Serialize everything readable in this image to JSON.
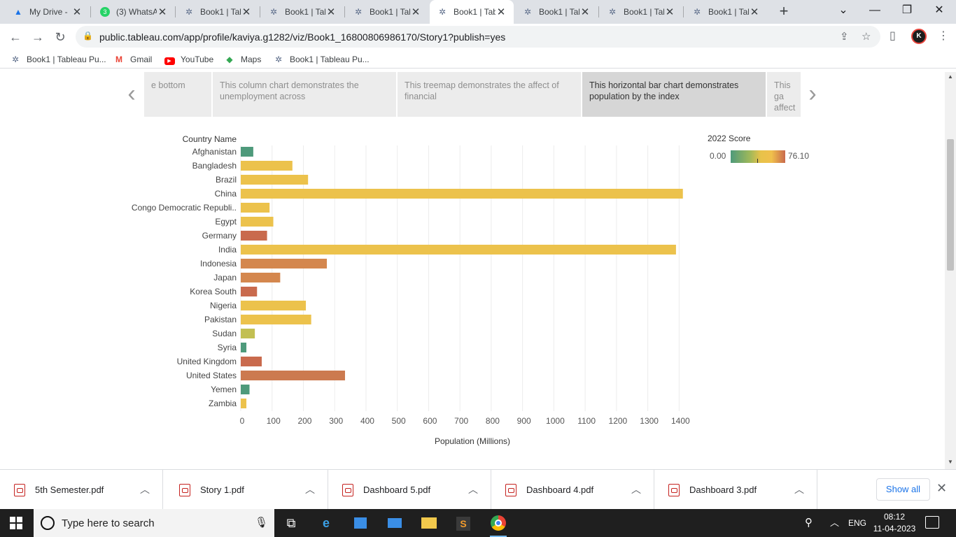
{
  "browser": {
    "tabs": [
      {
        "title": "My Drive -",
        "icon": "drive-icon",
        "color": "#1a73e8"
      },
      {
        "title": "(3) WhatsA",
        "icon": "whatsapp-icon",
        "color": "#25d366"
      },
      {
        "title": "Book1 | Tab",
        "icon": "tableau-icon"
      },
      {
        "title": "Book1 | Tab",
        "icon": "tableau-icon"
      },
      {
        "title": "Book1 | Tab",
        "icon": "tableau-icon"
      },
      {
        "title": "Book1 | Tab",
        "icon": "tableau-icon",
        "active": true
      },
      {
        "title": "Book1 | Tab",
        "icon": "tableau-icon"
      },
      {
        "title": "Book1 | Tab",
        "icon": "tableau-icon"
      },
      {
        "title": "Book1 | Tab",
        "icon": "tableau-icon"
      }
    ],
    "url": "public.tableau.com/app/profile/kaviya.g1282/viz/Book1_16800806986170/Story1?publish=yes",
    "profile_initial": "K",
    "bookmarks": [
      {
        "label": "Book1 | Tableau Pu...",
        "icon": "tableau-icon"
      },
      {
        "label": "Gmail",
        "icon": "gmail-icon"
      },
      {
        "label": "YouTube",
        "icon": "youtube-icon"
      },
      {
        "label": "Maps",
        "icon": "maps-icon"
      },
      {
        "label": "Book1 | Tableau Pu...",
        "icon": "tableau-icon"
      }
    ]
  },
  "story": {
    "points": [
      {
        "text": "e bottom"
      },
      {
        "text": "This column chart demonstrates the unemployment across"
      },
      {
        "text": "This treemap demonstrates the affect of financial"
      },
      {
        "text": "This horizontal bar chart demonstrates population by the index",
        "active": true
      },
      {
        "text": "This ga affect c"
      }
    ]
  },
  "legend": {
    "title": "2022 Score",
    "min": "0.00",
    "max": "76.10"
  },
  "chart_data": {
    "type": "bar",
    "orientation": "horizontal",
    "title": "",
    "ylabel": "Country Name",
    "xlabel": "Population (Millions)",
    "xlim": [
      0,
      1480
    ],
    "x_ticks": [
      "0",
      "100",
      "200",
      "300",
      "400",
      "500",
      "600",
      "700",
      "800",
      "900",
      "1000",
      "1100",
      "1200",
      "1300",
      "1400"
    ],
    "color_by": "2022 Score",
    "color_range": [
      0.0,
      76.1
    ],
    "grid": "vertical",
    "categories": [
      "Afghanistan",
      "Bangladesh",
      "Brazil",
      "China",
      "Congo Democratic Republi..",
      "Egypt",
      "Germany",
      "India",
      "Indonesia",
      "Japan",
      "Korea South",
      "Nigeria",
      "Pakistan",
      "Sudan",
      "Syria",
      "United Kingdom",
      "United States",
      "Yemen",
      "Zambia"
    ],
    "values": [
      40,
      165,
      215,
      1412,
      92,
      104,
      84,
      1390,
      275,
      126,
      52,
      208,
      225,
      45,
      18,
      67,
      333,
      28,
      18
    ],
    "colors": [
      "#4e9a7b",
      "#ecc24c",
      "#ecc24c",
      "#ecc24c",
      "#ecc24c",
      "#ecc24c",
      "#c96a4d",
      "#ecc24c",
      "#d4874e",
      "#d4874e",
      "#c96a4d",
      "#ecc24c",
      "#ecc24c",
      "#c2bf52",
      "#4e9a7b",
      "#c96a4d",
      "#cc7a4f",
      "#4e9a7b",
      "#ecc24c"
    ]
  },
  "downloads": {
    "files": [
      "5th Semester.pdf",
      "Story 1.pdf",
      "Dashboard 5.pdf",
      "Dashboard 4.pdf",
      "Dashboard 3.pdf"
    ],
    "show_all": "Show all"
  },
  "taskbar": {
    "search_placeholder": "Type here to search",
    "language": "ENG",
    "time": "08:12",
    "date": "11-04-2023"
  }
}
